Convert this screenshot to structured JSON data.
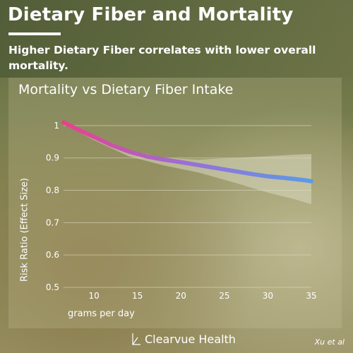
{
  "header": {
    "title": "Dietary Fiber and Mortality",
    "subtitle": "Higher Dietary Fiber correlates with lower overall mortality."
  },
  "footer": {
    "brand": "Clearvue Health",
    "credit": "Xu et al"
  },
  "colors": {
    "line_start": "#e8418c",
    "line_mid": "#9a6fd6",
    "line_end": "#5a9be6",
    "band": "#d9d8bf",
    "grid": "#e2e0c8"
  },
  "chart_data": {
    "type": "line",
    "title": "Mortality vs Dietary Fiber Intake",
    "xlabel": "grams per day",
    "ylabel": "Risk Ratio (Effect Size)",
    "xlim": [
      6.5,
      35
    ],
    "ylim": [
      0.5,
      1.05
    ],
    "xticks": [
      10,
      15,
      20,
      25,
      30,
      35
    ],
    "yticks": [
      0.5,
      0.6,
      0.7,
      0.8,
      0.9,
      1
    ],
    "ytick_labels": [
      "0.5",
      "0.6",
      "0.7",
      "0.8",
      "0.9",
      "1"
    ],
    "grid": "horizontal",
    "series": [
      {
        "x": [
          6.5,
          8,
          10,
          12,
          14,
          16,
          18,
          20,
          22,
          24,
          26,
          28,
          30,
          32,
          34,
          35
        ],
        "y": [
          1.01,
          0.99,
          0.965,
          0.94,
          0.92,
          0.905,
          0.895,
          0.887,
          0.878,
          0.869,
          0.86,
          0.851,
          0.843,
          0.838,
          0.832,
          0.828
        ]
      }
    ],
    "confidence_band": {
      "x": [
        6.5,
        10,
        14,
        18,
        22,
        26,
        30,
        33,
        35
      ],
      "upper": [
        1.015,
        0.97,
        0.925,
        0.9,
        0.895,
        0.9,
        0.905,
        0.91,
        0.912
      ],
      "lower": [
        1.005,
        0.955,
        0.905,
        0.877,
        0.855,
        0.825,
        0.793,
        0.773,
        0.757
      ]
    }
  }
}
